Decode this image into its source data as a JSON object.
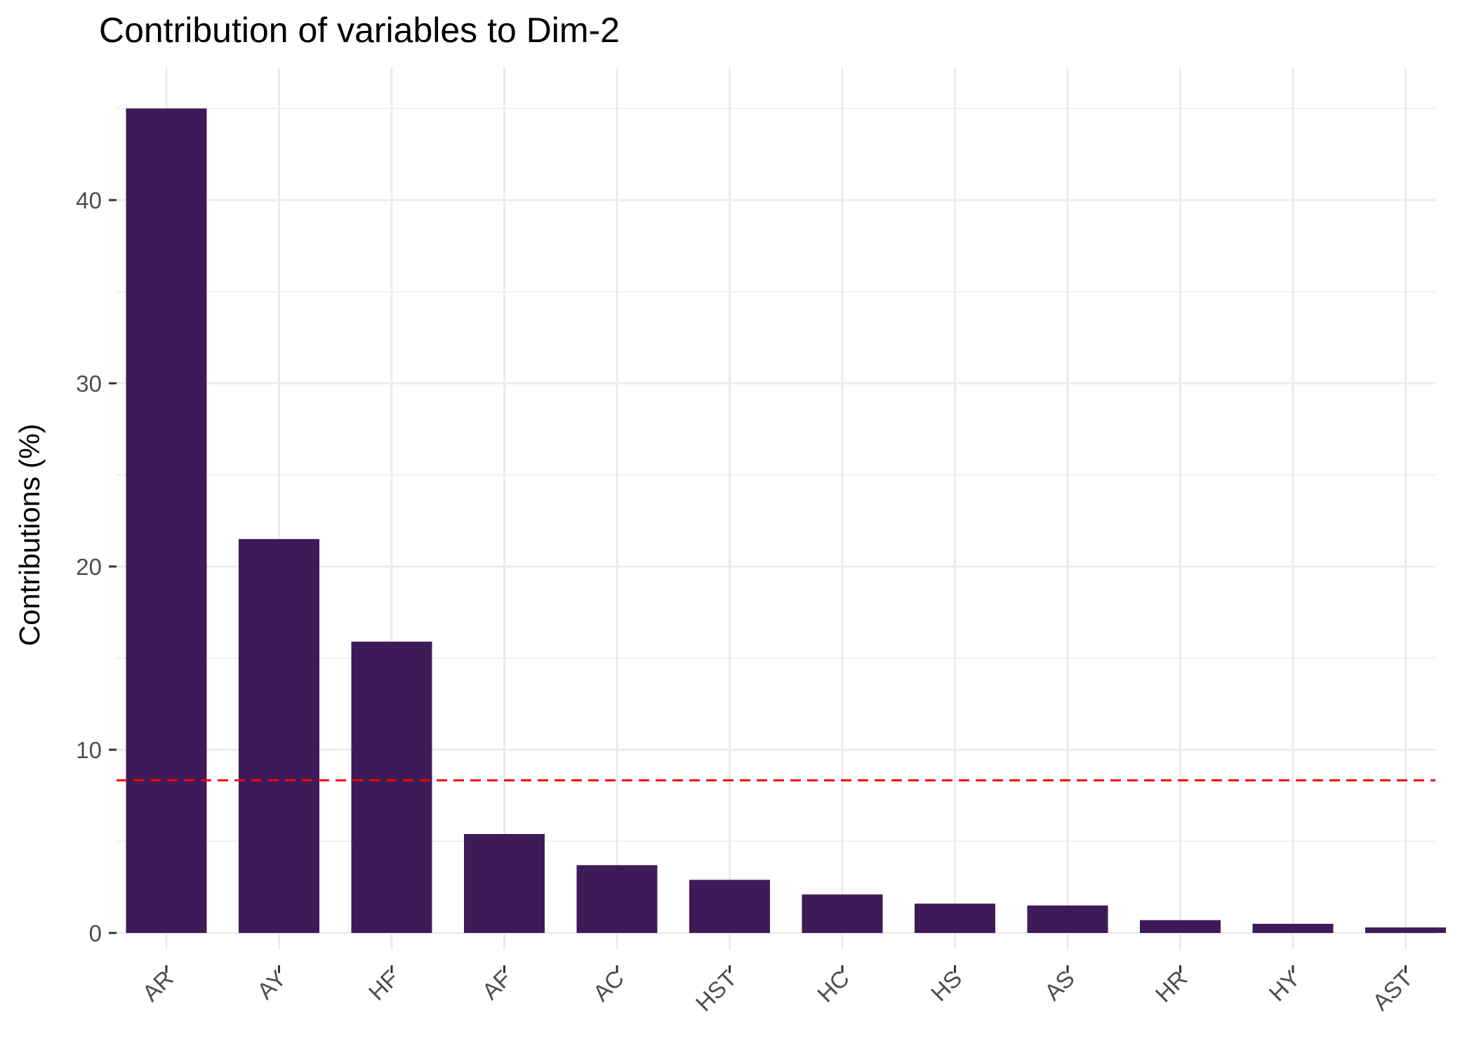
{
  "chart_data": {
    "type": "bar",
    "title": "Contribution of variables to Dim-2",
    "xlabel": "",
    "ylabel": "Contributions (%)",
    "categories": [
      "AR",
      "AY",
      "HF",
      "AF",
      "AC",
      "HST",
      "HC",
      "HS",
      "AS",
      "HR",
      "HY",
      "AST"
    ],
    "values": [
      45.0,
      21.5,
      15.9,
      5.4,
      3.7,
      2.9,
      2.1,
      1.6,
      1.5,
      0.7,
      0.5,
      0.3
    ],
    "y_ticks": [
      "0",
      "10",
      "20",
      "30",
      "40"
    ],
    "ylim": [
      0,
      45
    ],
    "reference_line": 8.33,
    "grid": true,
    "colors": {
      "bar": "#3f1a58",
      "reference_line": "#ff0000",
      "grid": "#ebebeb",
      "tick_label": "#4d4d4d",
      "tick_mark": "#333333"
    }
  }
}
